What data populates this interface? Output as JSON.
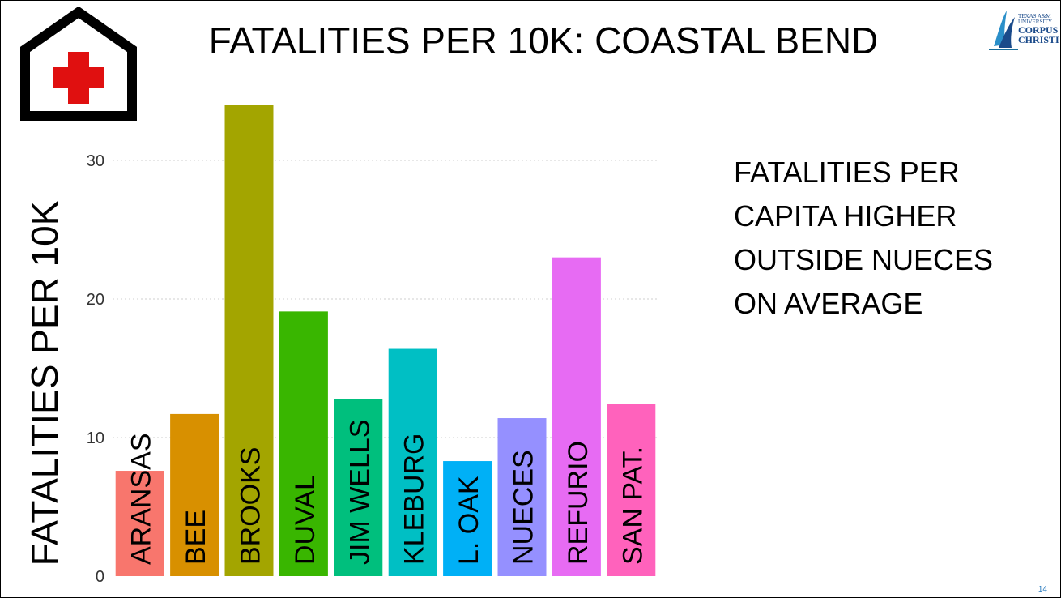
{
  "slide": {
    "title": "FATALITIES PER 10K: COASTAL BEND",
    "page_number": "14",
    "logo": {
      "line1": "TEXAS A&M",
      "line2": "UNIVERSITY",
      "line3": "CORPUS",
      "line4": "CHRISTI"
    },
    "callout_lines": [
      "FATALITIES PER",
      "CAPITA HIGHER",
      "OUTSIDE NUECES",
      "ON AVERAGE"
    ],
    "icon": "house-red-cross-icon"
  },
  "chart_data": {
    "type": "bar",
    "categories": [
      "ARANSAS",
      "BEE",
      "BROOKS",
      "DUVAL",
      "JIM WELLS",
      "KLEBURG",
      "L. OAK",
      "NUECES",
      "REFURIO",
      "SAN PAT."
    ],
    "values": [
      7.6,
      11.7,
      34.0,
      19.1,
      12.8,
      16.4,
      8.3,
      11.4,
      23.0,
      12.4
    ],
    "colors": [
      "#f8766d",
      "#d89000",
      "#a3a500",
      "#39b600",
      "#00bf7d",
      "#00bfc4",
      "#00b0f6",
      "#9590ff",
      "#e76bf3",
      "#ff62bc"
    ],
    "ylabel": "FATALITIES PER 10K",
    "yticks": [
      0,
      10,
      20,
      30
    ],
    "ylim": [
      0,
      34.5
    ],
    "grid": true
  }
}
